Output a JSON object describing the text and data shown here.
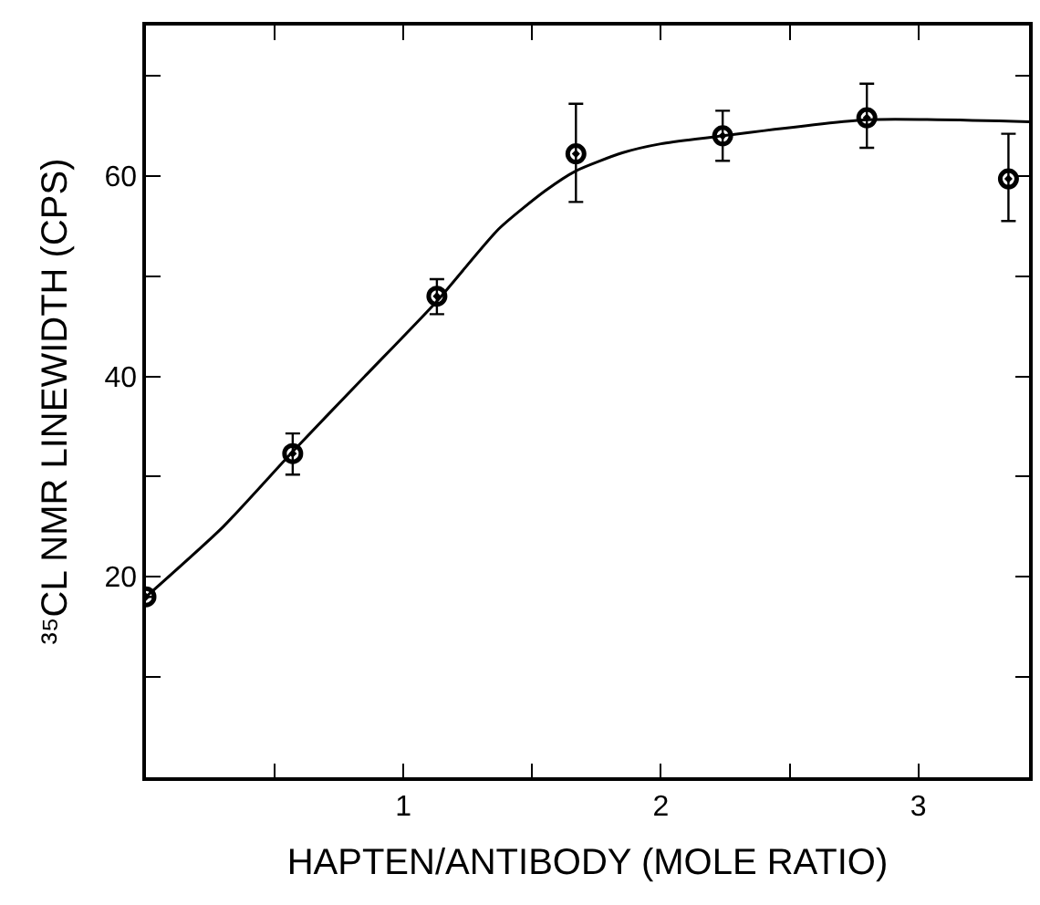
{
  "chart_data": {
    "type": "scatter",
    "xlabel": "HAPTEN/ANTIBODY (MOLE RATIO)",
    "ylabel": "³⁵CL NMR LINEWIDTH (CPS)",
    "xlim": [
      0,
      3.43
    ],
    "ylim": [
      0,
      75
    ],
    "xticks": [
      {
        "value": 0.5,
        "label": null
      },
      1,
      {
        "value": 1.5,
        "label": null
      },
      2,
      {
        "value": 2.5,
        "label": null
      },
      3
    ],
    "yticks": [
      {
        "value": 10,
        "label": null
      },
      20,
      {
        "value": 30,
        "label": null
      },
      40,
      {
        "value": 50,
        "label": null
      },
      60,
      {
        "value": 70,
        "label": null
      }
    ],
    "marker": "circle",
    "series": [
      {
        "color": "#000000",
        "x": [
          0,
          0.57,
          1.13,
          1.67,
          2.24,
          2.8,
          3.35
        ],
        "values": [
          18.0,
          32.3,
          48.0,
          62.2,
          64.0,
          65.8,
          59.7
        ],
        "errors": [
          null,
          [
            30.2,
            34.3
          ],
          [
            46.2,
            49.7
          ],
          [
            57.4,
            67.2
          ],
          [
            61.5,
            66.5
          ],
          [
            62.8,
            69.2
          ],
          [
            55.5,
            64.2
          ]
        ]
      },
      {
        "type": "line",
        "color": "#000000",
        "marker": "none",
        "line_style": "solid",
        "x": [
          0,
          0.3,
          0.57,
          0.85,
          1.13,
          1.37,
          1.55,
          1.67,
          1.85,
          2.0,
          2.24,
          2.8,
          3.43
        ],
        "values": [
          18.0,
          25.0,
          32.5,
          40.0,
          47.5,
          54.7,
          58.5,
          60.5,
          62.3,
          63.2,
          64.0,
          65.6,
          65.4
        ]
      }
    ]
  }
}
